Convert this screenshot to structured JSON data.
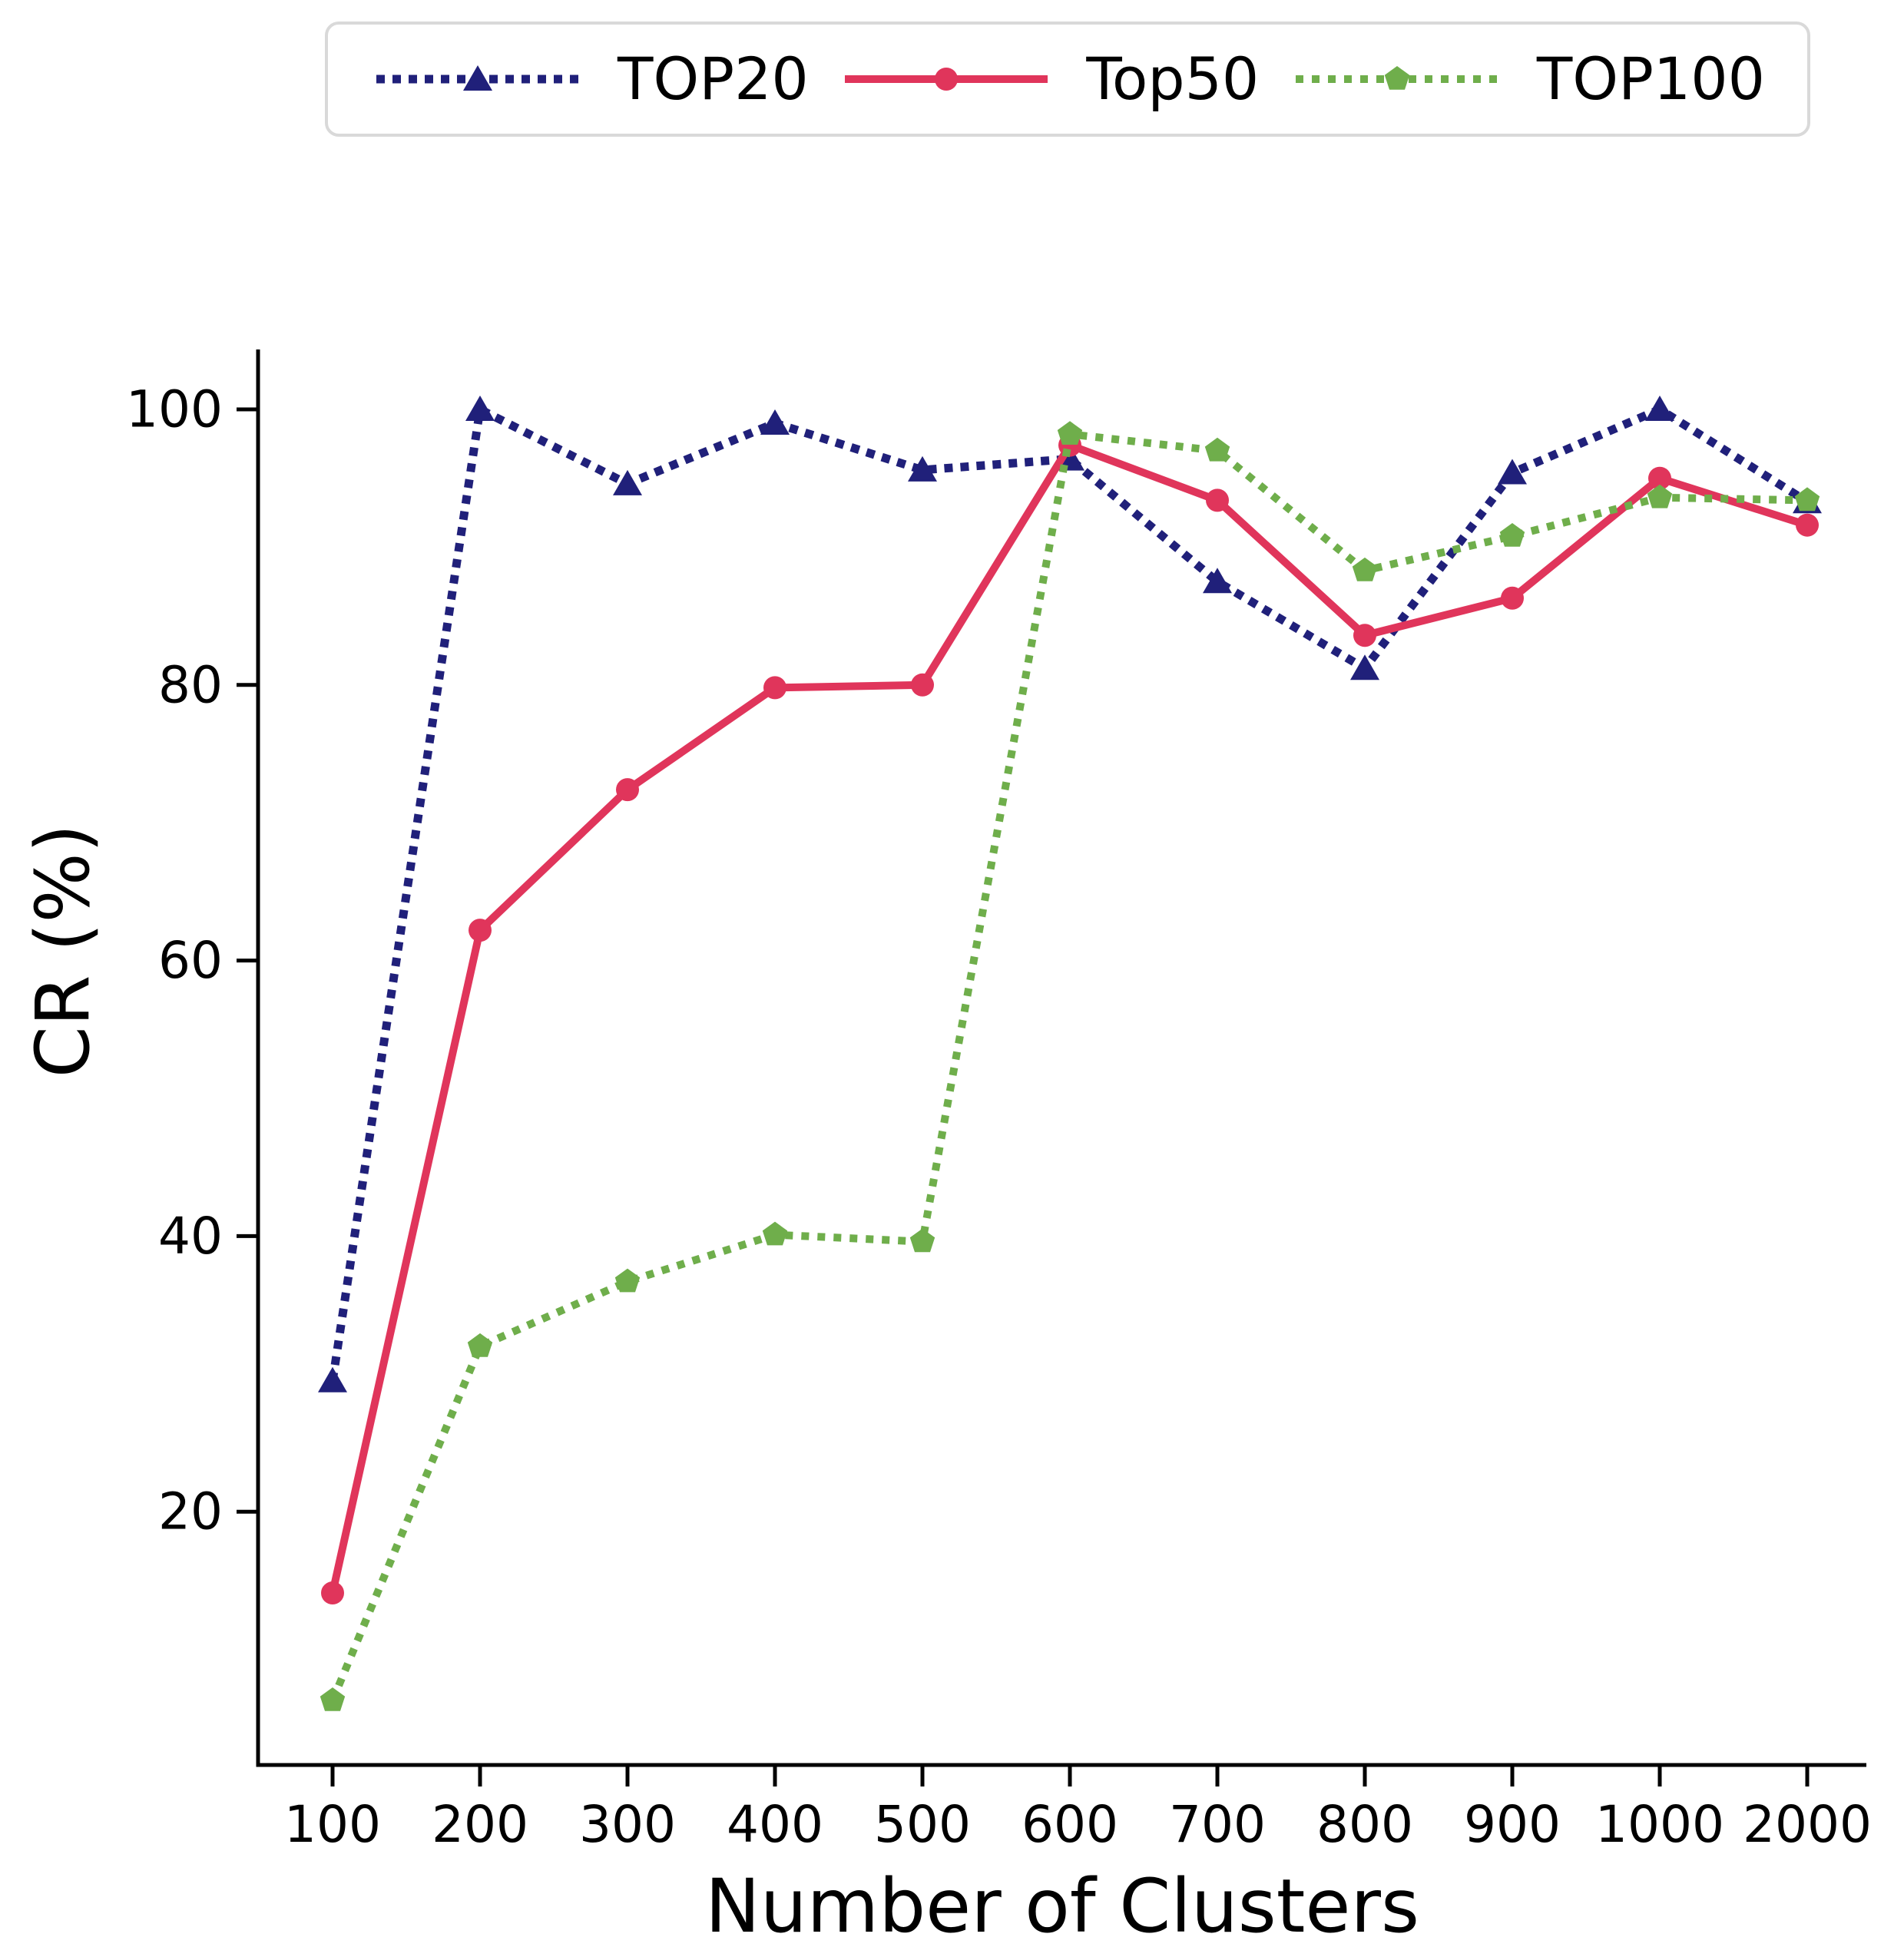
{
  "chart_data": {
    "type": "line",
    "title": "",
    "xlabel": "Number of Clusters",
    "ylabel": "CR (%)",
    "grid": false,
    "legend_position": "top",
    "ylim": [
      1.5,
      104.5
    ],
    "y_ticks": [
      20,
      40,
      60,
      80,
      100
    ],
    "y_tick_labels": [
      "20",
      "40",
      "60",
      "80",
      "100"
    ],
    "categories": [
      100,
      200,
      300,
      400,
      500,
      600,
      700,
      800,
      900,
      1000,
      2000
    ],
    "x_tick_labels": [
      "100",
      "200",
      "300",
      "400",
      "500",
      "600",
      "700",
      "800",
      "900",
      "1000",
      "2000"
    ],
    "series": [
      {
        "name": "TOP20",
        "color": "#20207a",
        "line_style": "dotted",
        "marker": "triangle",
        "values": [
          29.5,
          100,
          94.6,
          99.0,
          95.6,
          96.4,
          87.5,
          81.2,
          95.4,
          100,
          93.3
        ]
      },
      {
        "name": "Top50",
        "color": "#e0355b",
        "line_style": "solid",
        "marker": "circle",
        "values": [
          14.1,
          62.2,
          72.4,
          79.8,
          80.0,
          97.4,
          93.4,
          83.6,
          86.3,
          95.0,
          91.6
        ]
      },
      {
        "name": "TOP100",
        "color": "#6fae4b",
        "line_style": "dotted",
        "marker": "pentagon",
        "values": [
          6.3,
          32.0,
          36.7,
          40.1,
          39.6,
          98.2,
          97.0,
          88.3,
          90.8,
          93.6,
          93.4
        ]
      }
    ]
  }
}
